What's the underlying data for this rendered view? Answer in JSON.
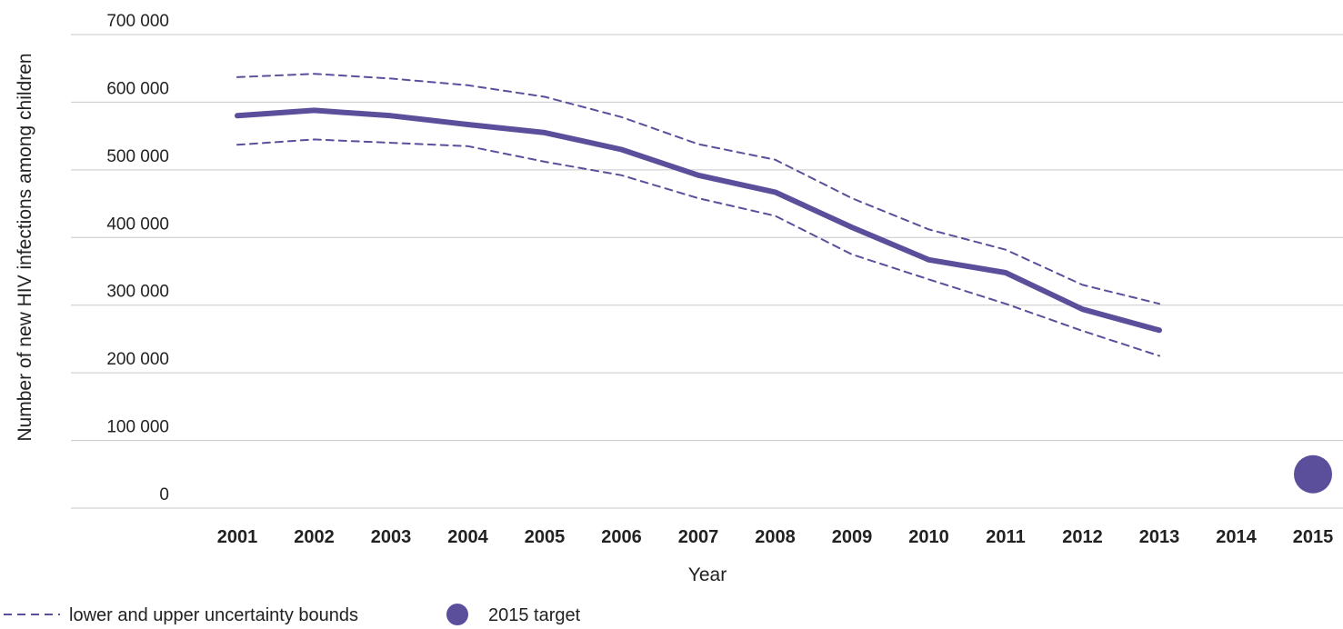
{
  "chart_data": {
    "type": "line",
    "title": "",
    "xlabel": "Year",
    "ylabel": "Number of new HIV infections among children",
    "categories": [
      "2001",
      "2002",
      "2003",
      "2004",
      "2005",
      "2006",
      "2007",
      "2008",
      "2009",
      "2010",
      "2011",
      "2012",
      "2013",
      "2014",
      "2015"
    ],
    "ylim": [
      0,
      700000
    ],
    "y_ticks": [
      0,
      100000,
      200000,
      300000,
      400000,
      500000,
      600000,
      700000
    ],
    "y_tick_labels": [
      "0",
      "100 000",
      "200 000",
      "300 000",
      "400 000",
      "500 000",
      "600 000",
      "700 000"
    ],
    "grid": true,
    "series": [
      {
        "role": "estimate",
        "style": "solid",
        "color": "#5b4f9b",
        "values": [
          580000,
          588000,
          580000,
          567000,
          555000,
          530000,
          492000,
          467000,
          415000,
          367000,
          348000,
          294000,
          263000,
          null,
          null
        ]
      },
      {
        "role": "upper-bound",
        "style": "dashed",
        "color": "#5b4f9b",
        "values": [
          637000,
          642000,
          635000,
          625000,
          608000,
          578000,
          538000,
          515000,
          458000,
          412000,
          382000,
          330000,
          302000,
          null,
          null
        ]
      },
      {
        "role": "lower-bound",
        "style": "dashed",
        "color": "#5b4f9b",
        "values": [
          537000,
          545000,
          540000,
          535000,
          512000,
          492000,
          458000,
          432000,
          375000,
          338000,
          302000,
          262000,
          225000,
          null,
          null
        ]
      }
    ],
    "target": {
      "year": "2015",
      "value": 50000,
      "color": "#5b4f9b"
    },
    "legend": {
      "placement": "bottom-left",
      "entries": [
        {
          "label": "lower and upper uncertainty bounds",
          "symbol": "dashed-line"
        },
        {
          "label": "2015 target",
          "symbol": "filled-circle"
        }
      ]
    }
  }
}
